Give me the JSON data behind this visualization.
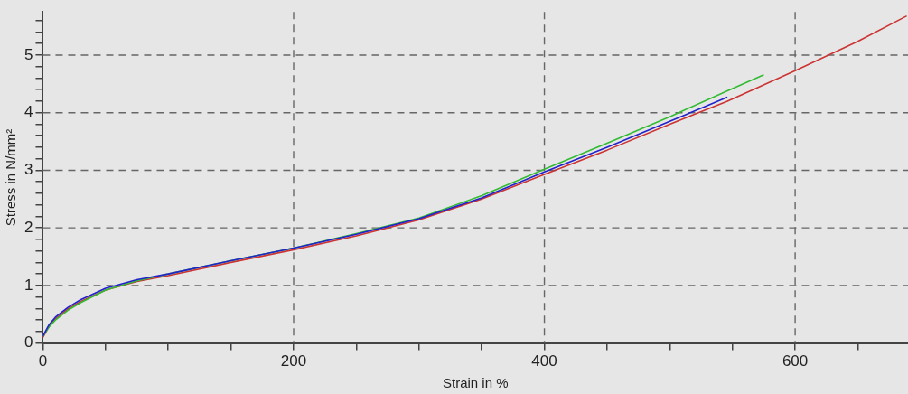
{
  "chart_data": {
    "type": "line",
    "xlabel": "Strain in %",
    "ylabel": "Stress in N/mm²",
    "xlim": [
      0,
      690
    ],
    "ylim": [
      0,
      5.75
    ],
    "xticks": [
      0,
      {
        "value": 50,
        "label": null
      },
      {
        "value": 100,
        "label": null
      },
      {
        "value": 150,
        "label": null
      },
      200,
      {
        "value": 250,
        "label": null
      },
      {
        "value": 300,
        "label": null
      },
      {
        "value": 350,
        "label": null
      },
      400,
      {
        "value": 450,
        "label": null
      },
      {
        "value": 500,
        "label": null
      },
      {
        "value": 550,
        "label": null
      },
      600,
      {
        "value": 650,
        "label": null
      }
    ],
    "yticks": [
      0,
      {
        "value": 0.2,
        "label": null
      },
      {
        "value": 0.4,
        "label": null
      },
      {
        "value": 0.6,
        "label": null
      },
      {
        "value": 0.8,
        "label": null
      },
      1,
      {
        "value": 1.2,
        "label": null
      },
      {
        "value": 1.4,
        "label": null
      },
      {
        "value": 1.6,
        "label": null
      },
      {
        "value": 1.8,
        "label": null
      },
      2,
      {
        "value": 2.2,
        "label": null
      },
      {
        "value": 2.4,
        "label": null
      },
      {
        "value": 2.6,
        "label": null
      },
      {
        "value": 2.8,
        "label": null
      },
      3,
      {
        "value": 3.2,
        "label": null
      },
      {
        "value": 3.4,
        "label": null
      },
      {
        "value": 3.6,
        "label": null
      },
      {
        "value": 3.8,
        "label": null
      },
      4,
      {
        "value": 4.2,
        "label": null
      },
      {
        "value": 4.4,
        "label": null
      },
      {
        "value": 4.6,
        "label": null
      },
      {
        "value": 4.8,
        "label": null
      },
      5,
      {
        "value": 5.2,
        "label": null
      },
      {
        "value": 5.4,
        "label": null
      },
      {
        "value": 5.6,
        "label": null
      }
    ],
    "grid": true,
    "legend": false,
    "marker": "none",
    "line_style": "solid",
    "series": [
      {
        "color": "#cc3333",
        "x": [
          0,
          5,
          10,
          20,
          30,
          50,
          75,
          100,
          150,
          200,
          250,
          300,
          350,
          400,
          450,
          500,
          546,
          600,
          650,
          689
        ],
        "values": [
          0.1,
          0.29,
          0.42,
          0.59,
          0.72,
          0.92,
          1.07,
          1.17,
          1.4,
          1.62,
          1.86,
          2.14,
          2.5,
          2.93,
          3.35,
          3.8,
          4.2,
          4.73,
          5.24,
          5.68
        ]
      },
      {
        "color": "#33bb33",
        "x": [
          0,
          5,
          10,
          20,
          30,
          50,
          75,
          100,
          150,
          200,
          250,
          300,
          350,
          400,
          450,
          500,
          546,
          575
        ],
        "values": [
          0.12,
          0.28,
          0.4,
          0.57,
          0.7,
          0.92,
          1.08,
          1.2,
          1.43,
          1.65,
          1.9,
          2.17,
          2.56,
          3.02,
          3.47,
          3.93,
          4.38,
          4.66
        ]
      },
      {
        "color": "#2222cc",
        "x": [
          0,
          5,
          10,
          20,
          30,
          50,
          75,
          100,
          150,
          200,
          250,
          300,
          350,
          400,
          450,
          500,
          546
        ],
        "values": [
          0.12,
          0.32,
          0.45,
          0.62,
          0.75,
          0.95,
          1.1,
          1.2,
          1.43,
          1.65,
          1.89,
          2.16,
          2.52,
          2.97,
          3.4,
          3.85,
          4.27
        ]
      }
    ]
  }
}
